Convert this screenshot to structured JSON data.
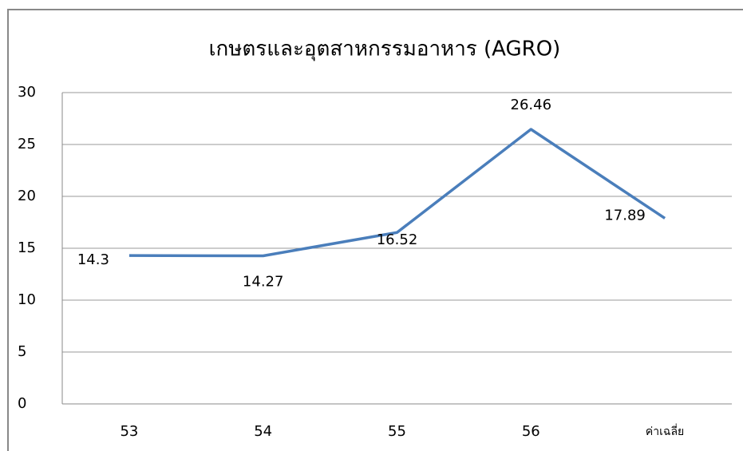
{
  "chart_data": {
    "type": "line",
    "title": "เกษตรและอุตสาหกรรมอาหาร (AGRO)",
    "categories": [
      "53",
      "54",
      "55",
      "56",
      "ค่าเฉลี่ย"
    ],
    "series": [
      {
        "name": "AGRO",
        "color": "#4a7ebb",
        "values": [
          14.3,
          14.27,
          16.52,
          26.46,
          17.89
        ]
      }
    ],
    "ylim": [
      0,
      30
    ],
    "yticks": [
      0,
      5,
      10,
      15,
      20,
      25,
      30
    ],
    "grid": true
  }
}
